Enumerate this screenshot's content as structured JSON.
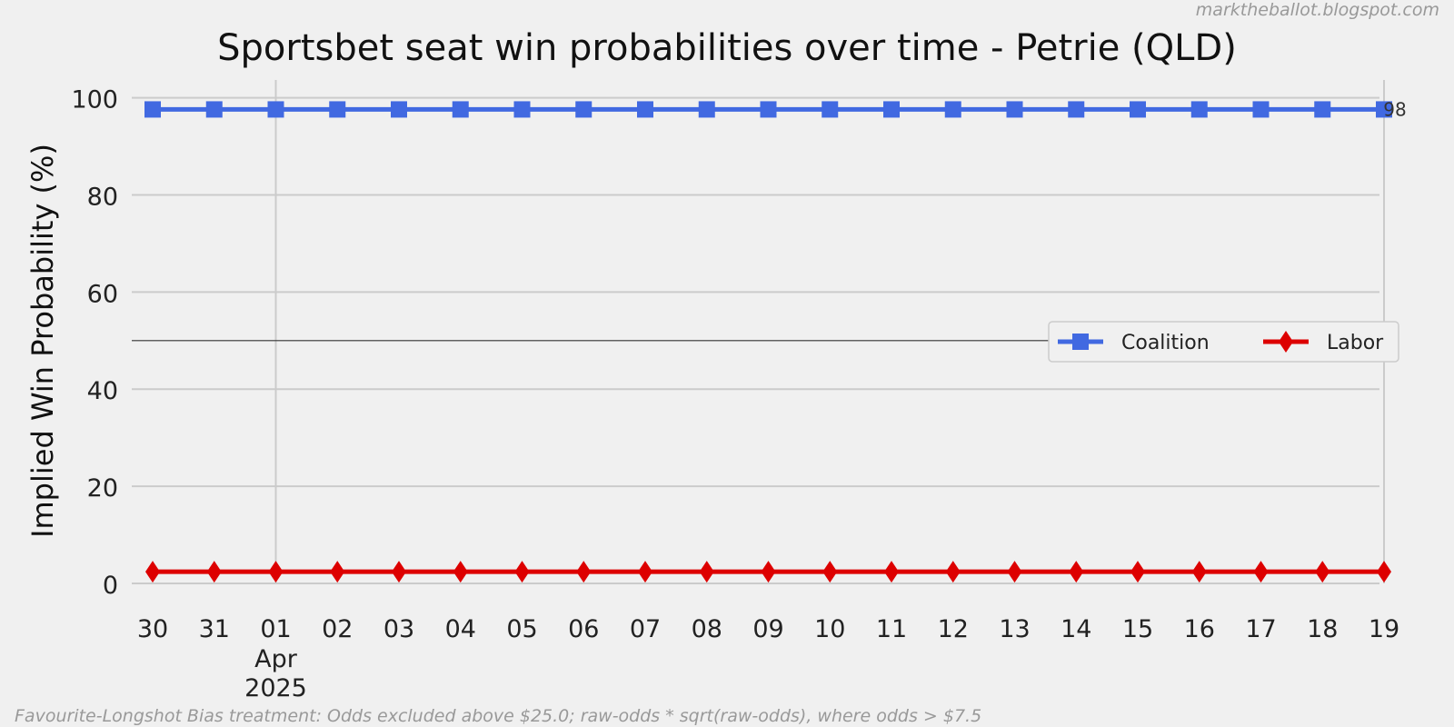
{
  "watermark": "marktheballot.blogspot.com",
  "footnote": "Favourite-Longshot Bias treatment: Odds excluded above $25.0; raw-odds * sqrt(raw-odds), where odds > $7.5",
  "chart_data": {
    "type": "line",
    "title": "Sportsbet seat win probabilities over time - Petrie (QLD)",
    "xlabel": "",
    "ylabel": "Implied Win Probability (%)",
    "ylim": [
      0,
      100
    ],
    "yticks": [
      0,
      20,
      40,
      60,
      80,
      100
    ],
    "x": [
      "2025-03-30",
      "2025-03-31",
      "2025-04-01",
      "2025-04-02",
      "2025-04-03",
      "2025-04-04",
      "2025-04-05",
      "2025-04-06",
      "2025-04-07",
      "2025-04-08",
      "2025-04-09",
      "2025-04-10",
      "2025-04-11",
      "2025-04-12",
      "2025-04-13",
      "2025-04-14",
      "2025-04-15",
      "2025-04-16",
      "2025-04-17",
      "2025-04-18",
      "2025-04-19"
    ],
    "xtick_labels": [
      "30",
      "31",
      "01",
      "02",
      "03",
      "04",
      "05",
      "06",
      "07",
      "08",
      "09",
      "10",
      "11",
      "12",
      "13",
      "14",
      "15",
      "16",
      "17",
      "18",
      "19"
    ],
    "month_label": "Apr",
    "year_label": "2025",
    "reference_line": 50,
    "grid": true,
    "legend_position": "center-right",
    "end_label": "98",
    "series": [
      {
        "name": "Coalition",
        "color": "#4169e1",
        "marker": "square",
        "values": [
          97.6,
          97.6,
          97.6,
          97.6,
          97.6,
          97.6,
          97.6,
          97.6,
          97.6,
          97.6,
          97.6,
          97.6,
          97.6,
          97.6,
          97.6,
          97.6,
          97.6,
          97.6,
          97.6,
          97.6,
          97.6
        ]
      },
      {
        "name": "Labor",
        "color": "#dd0000",
        "marker": "diamond",
        "values": [
          2.4,
          2.4,
          2.4,
          2.4,
          2.4,
          2.4,
          2.4,
          2.4,
          2.4,
          2.4,
          2.4,
          2.4,
          2.4,
          2.4,
          2.4,
          2.4,
          2.4,
          2.4,
          2.4,
          2.4,
          2.4
        ]
      }
    ]
  }
}
